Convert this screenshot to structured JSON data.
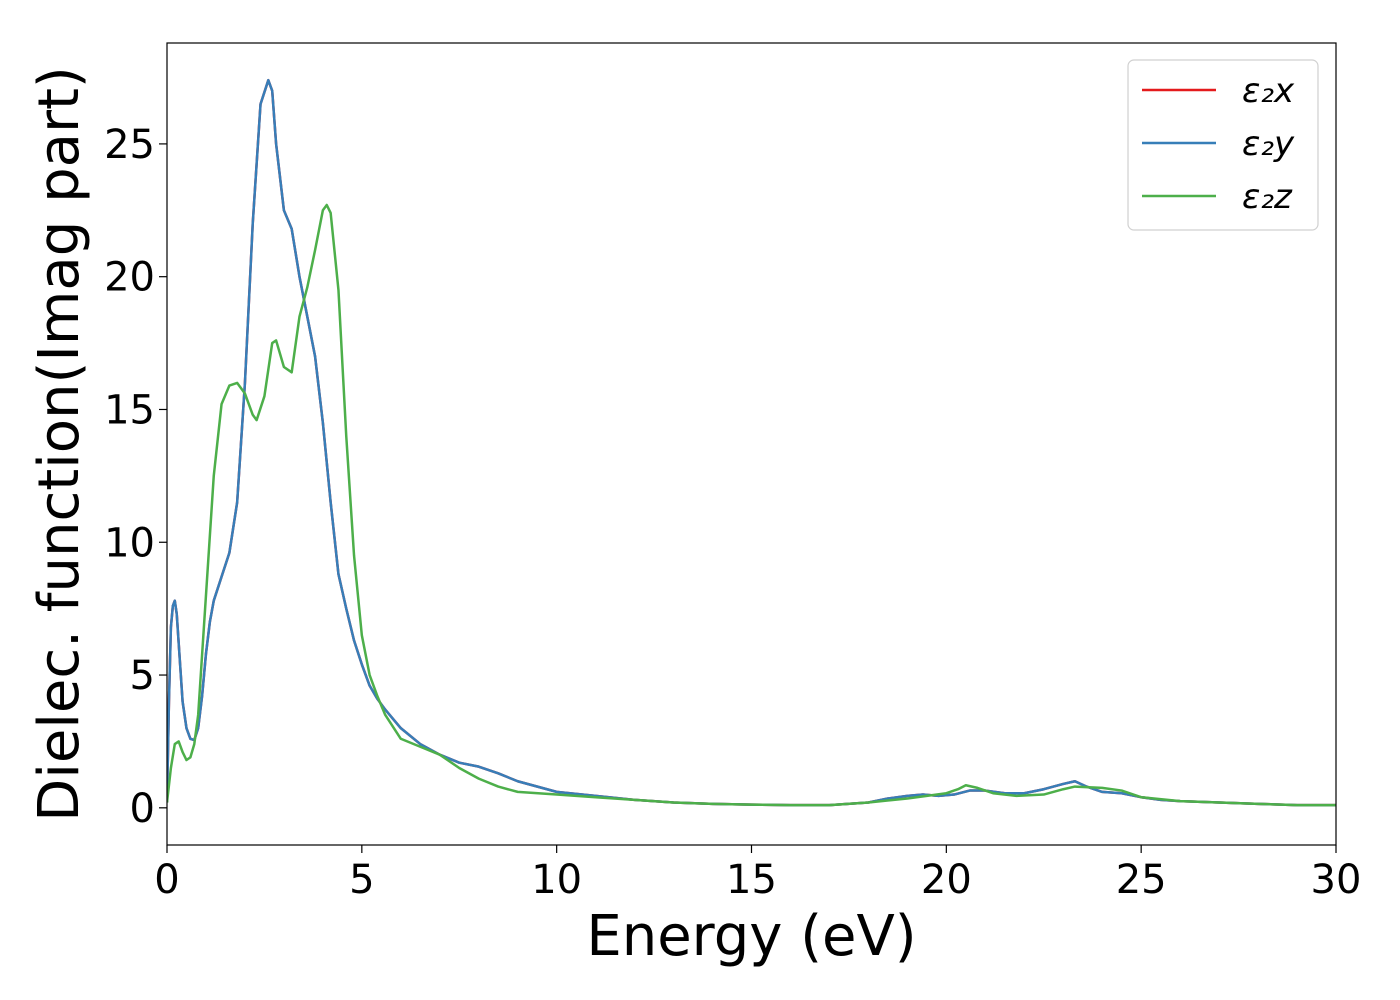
{
  "chart_data": {
    "type": "line",
    "xlabel": "Energy (eV)",
    "ylabel": "Dielec. function(Imag part)",
    "xlim": [
      0,
      30
    ],
    "ylim": [
      -1.4,
      28.8
    ],
    "xticks": [
      0,
      5,
      10,
      15,
      20,
      25,
      30
    ],
    "yticks": [
      0,
      5,
      10,
      15,
      20,
      25
    ],
    "grid": false,
    "legend_position": "top-right",
    "series": [
      {
        "name": "ε₂x",
        "color": "#e41a1c",
        "x": [
          0,
          0.05,
          0.1,
          0.15,
          0.2,
          0.25,
          0.3,
          0.4,
          0.5,
          0.6,
          0.7,
          0.8,
          0.9,
          1.0,
          1.1,
          1.2,
          1.4,
          1.6,
          1.8,
          2.0,
          2.2,
          2.4,
          2.6,
          2.7,
          2.8,
          3.0,
          3.2,
          3.4,
          3.6,
          3.8,
          4.0,
          4.2,
          4.4,
          4.6,
          4.8,
          5.0,
          5.2,
          5.4,
          5.6,
          6.0,
          6.5,
          7.0,
          7.5,
          8.0,
          8.5,
          9.0,
          10.0,
          11.0,
          12.0,
          13.0,
          14.0,
          15.0,
          16.0,
          17.0,
          18.0,
          18.5,
          19.0,
          19.4,
          19.8,
          20.2,
          20.6,
          21.0,
          21.5,
          22.0,
          22.5,
          23.0,
          23.3,
          23.6,
          24.0,
          24.5,
          25.0,
          25.5,
          26.0,
          27.0,
          28.0,
          29.0,
          30.0
        ],
        "y": [
          0.2,
          4.0,
          6.8,
          7.6,
          7.8,
          7.3,
          6.2,
          4.0,
          3.0,
          2.6,
          2.55,
          3.0,
          4.2,
          5.8,
          7.0,
          7.8,
          8.7,
          9.6,
          11.5,
          16.0,
          22.0,
          26.5,
          27.4,
          27.0,
          25.0,
          22.5,
          21.8,
          20.0,
          18.5,
          17.0,
          14.5,
          11.5,
          8.8,
          7.5,
          6.3,
          5.4,
          4.6,
          4.1,
          3.7,
          3.0,
          2.4,
          2.0,
          1.7,
          1.55,
          1.3,
          1.0,
          0.6,
          0.45,
          0.3,
          0.2,
          0.15,
          0.12,
          0.1,
          0.1,
          0.2,
          0.35,
          0.45,
          0.5,
          0.45,
          0.5,
          0.65,
          0.65,
          0.55,
          0.55,
          0.7,
          0.9,
          1.0,
          0.8,
          0.6,
          0.55,
          0.4,
          0.3,
          0.25,
          0.2,
          0.15,
          0.1,
          0.1
        ]
      },
      {
        "name": "ε₂y",
        "color": "#377eb8",
        "x": [
          0,
          0.05,
          0.1,
          0.15,
          0.2,
          0.25,
          0.3,
          0.4,
          0.5,
          0.6,
          0.7,
          0.8,
          0.9,
          1.0,
          1.1,
          1.2,
          1.4,
          1.6,
          1.8,
          2.0,
          2.2,
          2.4,
          2.6,
          2.7,
          2.8,
          3.0,
          3.2,
          3.4,
          3.6,
          3.8,
          4.0,
          4.2,
          4.4,
          4.6,
          4.8,
          5.0,
          5.2,
          5.4,
          5.6,
          6.0,
          6.5,
          7.0,
          7.5,
          8.0,
          8.5,
          9.0,
          10.0,
          11.0,
          12.0,
          13.0,
          14.0,
          15.0,
          16.0,
          17.0,
          18.0,
          18.5,
          19.0,
          19.4,
          19.8,
          20.2,
          20.6,
          21.0,
          21.5,
          22.0,
          22.5,
          23.0,
          23.3,
          23.6,
          24.0,
          24.5,
          25.0,
          25.5,
          26.0,
          27.0,
          28.0,
          29.0,
          30.0
        ],
        "y": [
          0.2,
          4.0,
          6.8,
          7.6,
          7.8,
          7.3,
          6.2,
          4.0,
          3.0,
          2.6,
          2.55,
          3.0,
          4.2,
          5.8,
          7.0,
          7.8,
          8.7,
          9.6,
          11.5,
          16.0,
          22.0,
          26.5,
          27.4,
          27.0,
          25.0,
          22.5,
          21.8,
          20.0,
          18.5,
          17.0,
          14.5,
          11.5,
          8.8,
          7.5,
          6.3,
          5.4,
          4.6,
          4.1,
          3.7,
          3.0,
          2.4,
          2.0,
          1.7,
          1.55,
          1.3,
          1.0,
          0.6,
          0.45,
          0.3,
          0.2,
          0.15,
          0.12,
          0.1,
          0.1,
          0.2,
          0.35,
          0.45,
          0.5,
          0.45,
          0.5,
          0.65,
          0.65,
          0.55,
          0.55,
          0.7,
          0.9,
          1.0,
          0.8,
          0.6,
          0.55,
          0.4,
          0.3,
          0.25,
          0.2,
          0.15,
          0.1,
          0.1
        ]
      },
      {
        "name": "ε₂z",
        "color": "#4daf4a",
        "x": [
          0,
          0.1,
          0.2,
          0.3,
          0.4,
          0.5,
          0.6,
          0.7,
          0.8,
          1.0,
          1.2,
          1.4,
          1.6,
          1.8,
          2.0,
          2.2,
          2.3,
          2.5,
          2.7,
          2.8,
          3.0,
          3.2,
          3.4,
          3.6,
          3.8,
          4.0,
          4.1,
          4.2,
          4.4,
          4.6,
          4.8,
          5.0,
          5.2,
          5.4,
          5.6,
          6.0,
          6.5,
          7.0,
          7.5,
          8.0,
          8.5,
          9.0,
          10.0,
          11.0,
          12.0,
          13.0,
          14.0,
          15.0,
          16.0,
          17.0,
          18.0,
          19.0,
          19.5,
          20.0,
          20.3,
          20.5,
          20.8,
          21.2,
          21.8,
          22.5,
          23.0,
          23.3,
          24.0,
          24.5,
          25.0,
          26.0,
          27.0,
          28.0,
          29.0,
          30.0
        ],
        "y": [
          0.2,
          1.5,
          2.4,
          2.5,
          2.1,
          1.8,
          1.9,
          2.4,
          3.5,
          8.0,
          12.5,
          15.2,
          15.9,
          16.0,
          15.6,
          14.8,
          14.6,
          15.5,
          17.5,
          17.6,
          16.6,
          16.4,
          18.5,
          19.6,
          21.0,
          22.5,
          22.7,
          22.4,
          19.5,
          14.0,
          9.5,
          6.5,
          5.0,
          4.2,
          3.5,
          2.6,
          2.3,
          2.0,
          1.5,
          1.1,
          0.8,
          0.6,
          0.5,
          0.4,
          0.3,
          0.2,
          0.15,
          0.12,
          0.1,
          0.1,
          0.2,
          0.35,
          0.45,
          0.55,
          0.7,
          0.85,
          0.75,
          0.55,
          0.45,
          0.5,
          0.7,
          0.8,
          0.75,
          0.65,
          0.4,
          0.25,
          0.2,
          0.15,
          0.1,
          0.1
        ]
      }
    ]
  }
}
